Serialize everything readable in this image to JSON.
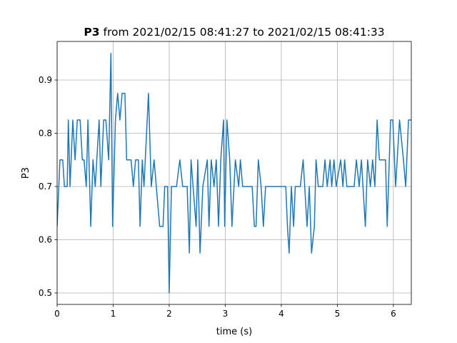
{
  "chart_data": {
    "type": "line",
    "title": {
      "bold": "P3",
      "rest": "from 2021/02/15 08:41:27 to 2021/02/15 08:41:33"
    },
    "xlabel": "time (s)",
    "ylabel": "P3",
    "xlim": [
      0,
      6.32
    ],
    "ylim": [
      0.4785,
      0.9725
    ],
    "xticks": [
      0,
      1,
      2,
      3,
      4,
      5,
      6
    ],
    "yticks": [
      0.5,
      0.6,
      0.7,
      0.8,
      0.9
    ],
    "grid": true,
    "series": [
      {
        "name": "P3",
        "color": "#1f77b4",
        "x": [
          0,
          0.05,
          0.1,
          0.13,
          0.18,
          0.2,
          0.23,
          0.28,
          0.32,
          0.36,
          0.41,
          0.45,
          0.48,
          0.52,
          0.55,
          0.6,
          0.64,
          0.68,
          0.75,
          0.78,
          0.83,
          0.87,
          0.92,
          0.96,
          0.99,
          1.04,
          1.08,
          1.12,
          1.16,
          1.21,
          1.24,
          1.32,
          1.36,
          1.4,
          1.45,
          1.48,
          1.52,
          1.55,
          1.63,
          1.68,
          1.73,
          1.77,
          1.83,
          1.89,
          1.92,
          1.97,
          2.0,
          2.04,
          2.13,
          2.19,
          2.24,
          2.32,
          2.36,
          2.39,
          2.48,
          2.51,
          2.55,
          2.6,
          2.68,
          2.71,
          2.75,
          2.8,
          2.84,
          2.88,
          2.92,
          2.97,
          2.99,
          3.03,
          3.08,
          3.12,
          3.18,
          3.24,
          3.27,
          3.31,
          3.48,
          3.52,
          3.55,
          3.59,
          3.64,
          3.68,
          3.72,
          4.08,
          4.11,
          4.14,
          4.18,
          4.22,
          4.25,
          4.34,
          4.39,
          4.46,
          4.5,
          4.54,
          4.59,
          4.62,
          4.66,
          4.74,
          4.78,
          4.82,
          4.87,
          4.9,
          4.94,
          4.98,
          5.06,
          5.1,
          5.13,
          5.17,
          5.3,
          5.34,
          5.39,
          5.43,
          5.5,
          5.54,
          5.59,
          5.63,
          5.67,
          5.71,
          5.75,
          5.86,
          5.89,
          5.95,
          5.99,
          6.04,
          6.11,
          6.18,
          6.22,
          6.27,
          6.32
        ],
        "values": [
          0.625,
          0.75,
          0.75,
          0.7,
          0.7,
          0.825,
          0.7,
          0.825,
          0.75,
          0.825,
          0.825,
          0.75,
          0.75,
          0.7,
          0.825,
          0.625,
          0.75,
          0.7,
          0.825,
          0.7,
          0.825,
          0.825,
          0.75,
          0.95,
          0.625,
          0.825,
          0.875,
          0.825,
          0.875,
          0.875,
          0.75,
          0.75,
          0.7,
          0.75,
          0.75,
          0.625,
          0.75,
          0.7,
          0.875,
          0.7,
          0.75,
          0.7,
          0.625,
          0.625,
          0.7,
          0.7,
          0.5,
          0.7,
          0.7,
          0.75,
          0.7,
          0.7,
          0.575,
          0.75,
          0.625,
          0.75,
          0.575,
          0.7,
          0.75,
          0.625,
          0.75,
          0.7,
          0.75,
          0.625,
          0.75,
          0.825,
          0.625,
          0.825,
          0.75,
          0.625,
          0.75,
          0.7,
          0.75,
          0.7,
          0.7,
          0.625,
          0.625,
          0.75,
          0.7,
          0.625,
          0.7,
          0.7,
          0.625,
          0.575,
          0.7,
          0.625,
          0.7,
          0.7,
          0.75,
          0.625,
          0.7,
          0.575,
          0.625,
          0.75,
          0.7,
          0.7,
          0.75,
          0.7,
          0.75,
          0.7,
          0.75,
          0.7,
          0.75,
          0.7,
          0.75,
          0.7,
          0.7,
          0.75,
          0.7,
          0.75,
          0.625,
          0.75,
          0.7,
          0.75,
          0.7,
          0.825,
          0.75,
          0.75,
          0.625,
          0.825,
          0.825,
          0.7,
          0.825,
          0.75,
          0.7,
          0.825,
          0.825
        ]
      }
    ]
  }
}
